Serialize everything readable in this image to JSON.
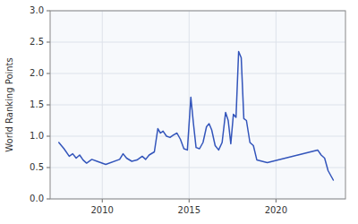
{
  "chart_data": {
    "type": "line",
    "ylabel": "World Ranking Points",
    "color": "#3355bb",
    "grid": true,
    "xlim": [
      2007.0,
      2024.0
    ],
    "xticks": [
      2010,
      2015,
      2020
    ],
    "ylim": [
      0,
      3
    ],
    "yticks": [
      {
        "value": 0,
        "label": "0.0"
      },
      0.5,
      {
        "value": 1,
        "label": "1.0"
      },
      1.5,
      {
        "value": 2,
        "label": "2.0"
      },
      2.5,
      {
        "value": 3,
        "label": "3.0"
      }
    ],
    "x": [
      2007.5,
      2007.8,
      2008.1,
      2008.3,
      2008.5,
      2008.7,
      2008.9,
      2009.1,
      2009.4,
      2009.7,
      2010.2,
      2011.0,
      2011.2,
      2011.4,
      2011.7,
      2012.0,
      2012.3,
      2012.5,
      2012.7,
      2013.0,
      2013.2,
      2013.35,
      2013.5,
      2013.7,
      2013.9,
      2014.1,
      2014.3,
      2014.5,
      2014.7,
      2014.9,
      2015.1,
      2015.25,
      2015.4,
      2015.6,
      2015.8,
      2016.0,
      2016.15,
      2016.3,
      2016.5,
      2016.7,
      2016.9,
      2017.1,
      2017.25,
      2017.4,
      2017.55,
      2017.7,
      2017.85,
      2018.0,
      2018.15,
      2018.3,
      2018.5,
      2018.7,
      2018.9,
      2019.2,
      2019.5,
      2022.4,
      2022.6,
      2022.8,
      2023.0,
      2023.3
    ],
    "values": [
      0.9,
      0.8,
      0.68,
      0.72,
      0.65,
      0.7,
      0.62,
      0.57,
      0.63,
      0.6,
      0.55,
      0.63,
      0.72,
      0.65,
      0.6,
      0.62,
      0.68,
      0.63,
      0.7,
      0.75,
      1.12,
      1.05,
      1.08,
      1.0,
      0.98,
      1.02,
      1.05,
      0.95,
      0.8,
      0.78,
      1.62,
      1.2,
      0.82,
      0.8,
      0.9,
      1.15,
      1.2,
      1.1,
      0.85,
      0.78,
      0.9,
      1.38,
      1.25,
      0.88,
      1.35,
      1.3,
      2.35,
      2.25,
      1.28,
      1.25,
      0.9,
      0.85,
      0.62,
      0.6,
      0.58,
      0.78,
      0.7,
      0.65,
      0.45,
      0.3
    ]
  }
}
